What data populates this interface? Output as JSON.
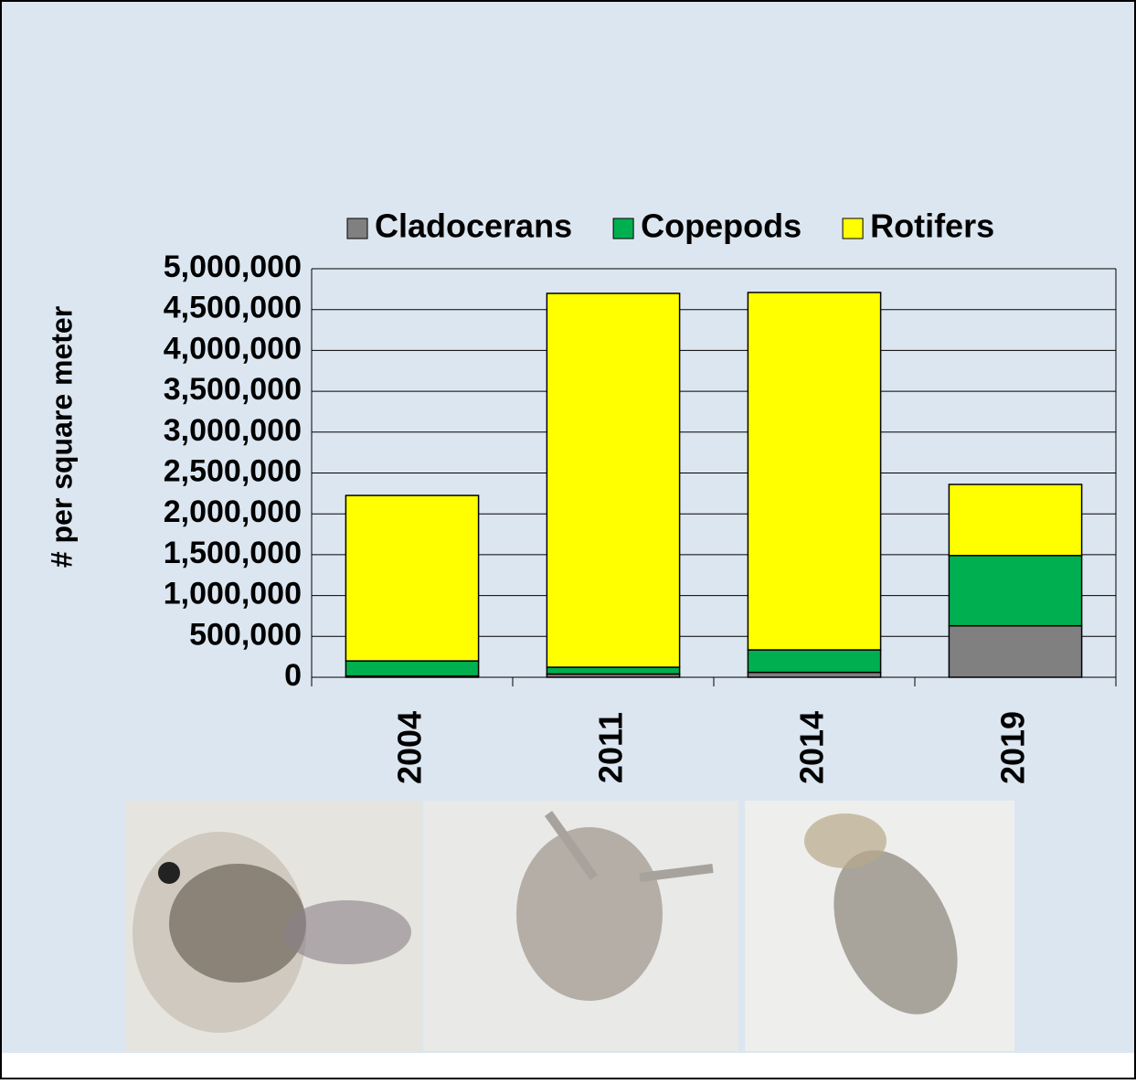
{
  "chart_data": {
    "type": "stacked_bar",
    "y_label": "# per square meter",
    "categories": [
      "2004",
      "2011",
      "2014",
      "2019"
    ],
    "series": [
      {
        "name": "Cladocerans",
        "color": "#808080",
        "values": [
          15000,
          40000,
          60000,
          630000
        ]
      },
      {
        "name": "Copepods",
        "color": "#00b050",
        "values": [
          185000,
          83000,
          275000,
          860000
        ]
      },
      {
        "name": "Rotifers",
        "color": "#ffff00",
        "values": [
          2025000,
          4575000,
          4374000,
          870000
        ]
      }
    ],
    "ylim": [
      0,
      5000000
    ],
    "yticks": [
      0,
      {
        "value": 500000,
        "label": "500,000"
      },
      {
        "value": 1000000,
        "label": "1,000,000"
      },
      {
        "value": 1500000,
        "label": "1,500,000"
      },
      {
        "value": 2000000,
        "label": "2,000,000"
      },
      {
        "value": 2500000,
        "label": "2,500,000"
      },
      {
        "value": 3000000,
        "label": "3,000,000"
      },
      {
        "value": 3500000,
        "label": "3,500,000"
      },
      {
        "value": 4000000,
        "label": "4,000,000"
      },
      {
        "value": 4500000,
        "label": "4,500,000"
      },
      {
        "value": 5000000,
        "label": "5,000,000"
      }
    ],
    "grid": true
  }
}
